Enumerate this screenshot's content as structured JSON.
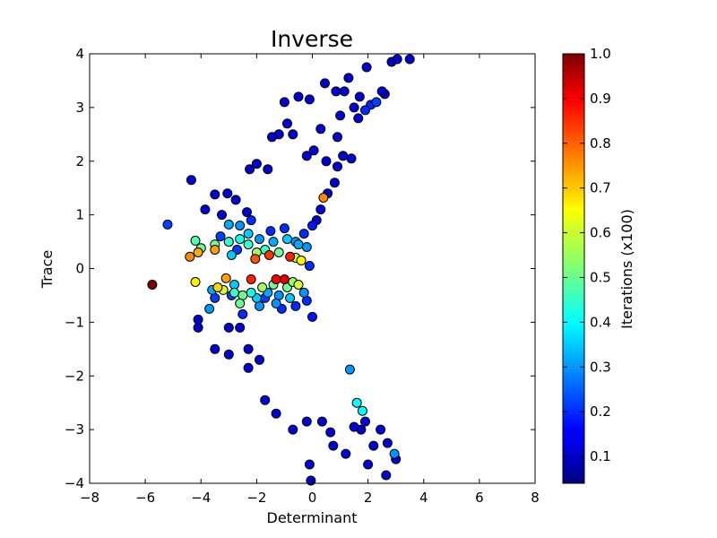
{
  "chart_data": {
    "type": "scatter",
    "title": "Inverse",
    "xlabel": "Determinant",
    "ylabel": "Trace",
    "xlim": [
      -8,
      8
    ],
    "ylim": [
      -4,
      4
    ],
    "xticks": [
      "−8",
      "−6",
      "−4",
      "−2",
      "0",
      "2",
      "4",
      "6",
      "8"
    ],
    "yticks": [
      "−4",
      "−3",
      "−2",
      "−1",
      "0",
      "1",
      "2",
      "3",
      "4"
    ],
    "grid": false,
    "colorbar": {
      "label": "Iterations (x100)",
      "colormap": "jet",
      "range": [
        0.04,
        1.0
      ],
      "ticks": [
        "0.1",
        "0.2",
        "0.3",
        "0.4",
        "0.5",
        "0.6",
        "0.7",
        "0.8",
        "0.9",
        "1.0"
      ]
    },
    "marker_edge_color": "#000000",
    "points": [
      [
        -5.75,
        -0.3,
        1.0
      ],
      [
        -4.4,
        0.22,
        0.75
      ],
      [
        -4.1,
        0.3,
        0.72
      ],
      [
        -3.5,
        0.35,
        0.73
      ],
      [
        -3.1,
        -0.18,
        0.73
      ],
      [
        -2.05,
        0.18,
        0.8
      ],
      [
        -1.3,
        -0.2,
        0.88
      ],
      [
        -1.0,
        -0.2,
        0.9
      ],
      [
        -0.8,
        0.22,
        0.85
      ],
      [
        -2.2,
        -0.2,
        0.85
      ],
      [
        0.4,
        1.32,
        0.75
      ],
      [
        -1.55,
        0.25,
        0.83
      ],
      [
        -4.2,
        -0.25,
        0.65
      ],
      [
        -3.4,
        -0.35,
        0.68
      ],
      [
        -3.2,
        -0.4,
        0.6
      ],
      [
        -4.2,
        0.52,
        0.48
      ],
      [
        -4.0,
        0.38,
        0.5
      ],
      [
        -3.5,
        0.45,
        0.5
      ],
      [
        -3.0,
        0.5,
        0.45
      ],
      [
        -2.6,
        0.55,
        0.42
      ],
      [
        -2.3,
        0.45,
        0.45
      ],
      [
        -2.0,
        0.3,
        0.55
      ],
      [
        -1.7,
        0.35,
        0.45
      ],
      [
        -1.2,
        0.3,
        0.5
      ],
      [
        -0.6,
        0.2,
        0.6
      ],
      [
        -0.4,
        0.15,
        0.65
      ],
      [
        -2.8,
        -0.45,
        0.45
      ],
      [
        -2.5,
        -0.5,
        0.5
      ],
      [
        -2.2,
        -0.45,
        0.42
      ],
      [
        -1.8,
        -0.35,
        0.55
      ],
      [
        -1.4,
        -0.3,
        0.5
      ],
      [
        -0.9,
        -0.35,
        0.5
      ],
      [
        -0.7,
        -0.25,
        0.55
      ],
      [
        -0.5,
        -0.3,
        0.6
      ],
      [
        -2.6,
        -0.65,
        0.5
      ],
      [
        -3.0,
        0.82,
        0.32
      ],
      [
        -2.6,
        0.8,
        0.3
      ],
      [
        -2.3,
        0.65,
        0.35
      ],
      [
        -1.9,
        0.55,
        0.3
      ],
      [
        -1.4,
        0.5,
        0.32
      ],
      [
        -0.9,
        0.55,
        0.35
      ],
      [
        -0.6,
        0.5,
        0.3
      ],
      [
        -3.0,
        0.5,
        0.35
      ],
      [
        -2.0,
        -0.55,
        0.35
      ],
      [
        -1.6,
        -0.45,
        0.32
      ],
      [
        -1.2,
        -0.5,
        0.3
      ],
      [
        -0.8,
        -0.55,
        0.35
      ],
      [
        -0.3,
        -0.45,
        0.3
      ],
      [
        -2.8,
        -0.3,
        0.35
      ],
      [
        -3.7,
        -0.75,
        0.3
      ],
      [
        -3.6,
        -0.4,
        0.32
      ],
      [
        -1.9,
        -0.7,
        0.3
      ],
      [
        -1.3,
        -0.65,
        0.3
      ],
      [
        -0.5,
        0.45,
        0.32
      ],
      [
        -0.2,
        0.4,
        0.3
      ],
      [
        -2.9,
        0.25,
        0.35
      ],
      [
        1.6,
        -2.5,
        0.4
      ],
      [
        1.8,
        -2.65,
        0.4
      ],
      [
        2.95,
        -3.45,
        0.3
      ],
      [
        1.35,
        -1.88,
        0.3
      ],
      [
        2.1,
        3.05,
        0.2
      ],
      [
        2.3,
        3.1,
        0.22
      ],
      [
        1.9,
        2.95,
        0.2
      ],
      [
        -5.2,
        0.82,
        0.22
      ],
      [
        -2.5,
        -0.85,
        0.2
      ],
      [
        -3.3,
        0.6,
        0.22
      ],
      [
        -2.2,
        0.9,
        0.2
      ],
      [
        -1.5,
        0.7,
        0.2
      ],
      [
        -1.0,
        0.75,
        0.2
      ],
      [
        -2.9,
        -0.5,
        0.22
      ],
      [
        -1.7,
        -0.55,
        0.22
      ],
      [
        -1.1,
        -0.75,
        0.2
      ],
      [
        -0.6,
        -0.7,
        0.2
      ],
      [
        -0.2,
        -0.6,
        0.2
      ],
      [
        -2.7,
        0.35,
        0.22
      ],
      [
        -3.5,
        -0.55,
        0.22
      ],
      [
        0.0,
        0.8,
        0.18
      ],
      [
        0.0,
        -0.9,
        0.18
      ],
      [
        -0.3,
        0.65,
        0.2
      ],
      [
        -0.1,
        0.05,
        0.2
      ],
      [
        -4.1,
        -0.95,
        0.12
      ],
      [
        -4.1,
        -1.1,
        0.12
      ],
      [
        -3.5,
        -1.5,
        0.12
      ],
      [
        -3.0,
        -1.6,
        0.12
      ],
      [
        -3.0,
        -1.1,
        0.12
      ],
      [
        -2.6,
        -1.1,
        0.12
      ],
      [
        -4.35,
        1.65,
        0.12
      ],
      [
        -3.5,
        1.38,
        0.12
      ],
      [
        -3.05,
        1.4,
        0.12
      ],
      [
        -3.85,
        1.1,
        0.12
      ],
      [
        -3.25,
        1.0,
        0.12
      ],
      [
        -2.35,
        1.05,
        0.12
      ],
      [
        -2.25,
        1.85,
        0.12
      ],
      [
        -2.75,
        1.28,
        0.12
      ],
      [
        1.3,
        3.55,
        0.12
      ],
      [
        0.5,
        2.0,
        0.12
      ],
      [
        -2.3,
        -1.5,
        0.12
      ],
      [
        -2.3,
        -1.85,
        0.12
      ],
      [
        -1.9,
        -1.7,
        0.12
      ],
      [
        -1.7,
        -2.45,
        0.12
      ],
      [
        -1.3,
        -2.7,
        0.12
      ],
      [
        -0.7,
        -3.0,
        0.12
      ],
      [
        -0.2,
        -2.85,
        0.12
      ],
      [
        0.35,
        -2.85,
        0.12
      ],
      [
        0.75,
        -3.3,
        0.12
      ],
      [
        -0.1,
        -3.65,
        0.12
      ],
      [
        -0.05,
        -3.95,
        0.12
      ],
      [
        1.2,
        -3.45,
        0.12
      ],
      [
        2.65,
        -3.85,
        0.12
      ],
      [
        2.0,
        -3.65,
        0.12
      ],
      [
        2.7,
        -3.25,
        0.12
      ],
      [
        3.0,
        -3.55,
        0.12
      ],
      [
        2.45,
        -3.0,
        0.12
      ],
      [
        1.75,
        -3.0,
        0.12
      ],
      [
        1.5,
        -2.95,
        0.12
      ],
      [
        0.65,
        -3.05,
        0.12
      ],
      [
        1.9,
        -2.85,
        0.12
      ],
      [
        2.2,
        -3.3,
        0.12
      ],
      [
        2.85,
        3.85,
        0.12
      ],
      [
        3.5,
        3.9,
        0.12
      ],
      [
        3.05,
        3.9,
        0.12
      ],
      [
        1.95,
        3.75,
        0.12
      ],
      [
        2.6,
        3.25,
        0.12
      ],
      [
        2.5,
        3.3,
        0.12
      ],
      [
        1.15,
        3.3,
        0.12
      ],
      [
        0.85,
        3.3,
        0.12
      ],
      [
        0.45,
        3.45,
        0.12
      ],
      [
        -0.5,
        3.2,
        0.12
      ],
      [
        -0.1,
        3.15,
        0.12
      ],
      [
        -1.0,
        3.1,
        0.12
      ],
      [
        -0.9,
        2.7,
        0.12
      ],
      [
        -1.2,
        2.5,
        0.12
      ],
      [
        -1.45,
        2.45,
        0.12
      ],
      [
        -0.7,
        2.5,
        0.12
      ],
      [
        0.3,
        2.6,
        0.12
      ],
      [
        0.05,
        2.2,
        0.12
      ],
      [
        -0.2,
        2.1,
        0.12
      ],
      [
        -2.0,
        1.95,
        0.12
      ],
      [
        -1.6,
        1.85,
        0.12
      ],
      [
        1.0,
        2.85,
        0.12
      ],
      [
        1.65,
        2.8,
        0.12
      ],
      [
        1.5,
        3.0,
        0.12
      ],
      [
        1.7,
        3.2,
        0.12
      ],
      [
        0.9,
        2.45,
        0.12
      ],
      [
        1.1,
        2.1,
        0.12
      ],
      [
        0.9,
        1.9,
        0.12
      ],
      [
        1.4,
        2.05,
        0.12
      ],
      [
        0.8,
        1.6,
        0.12
      ],
      [
        0.55,
        1.4,
        0.12
      ],
      [
        0.3,
        1.1,
        0.12
      ],
      [
        0.15,
        0.9,
        0.12
      ]
    ]
  }
}
